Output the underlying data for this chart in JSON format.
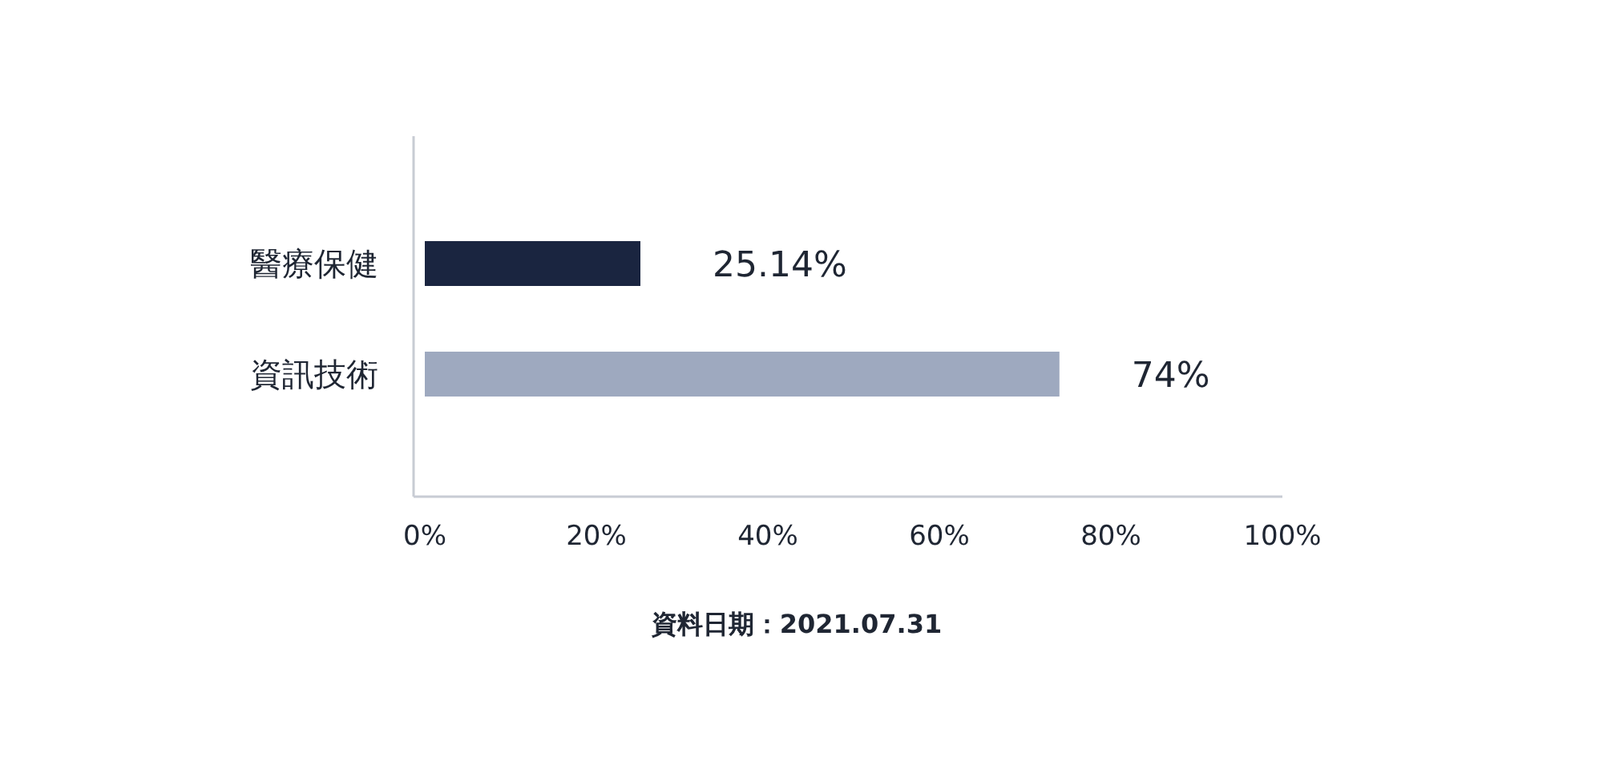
{
  "chart_data": {
    "type": "bar",
    "orientation": "horizontal",
    "categories": [
      "醫療保健",
      "資訊技術"
    ],
    "values": [
      25.14,
      74
    ],
    "colors": [
      "#1a2540",
      "#9ea9bf"
    ],
    "value_labels": [
      "25.14%",
      "74%"
    ],
    "xlim": [
      0,
      100
    ],
    "xticks": [
      {
        "value": 0,
        "label": "0%"
      },
      {
        "value": 20,
        "label": "20%"
      },
      {
        "value": 40,
        "label": "40%"
      },
      {
        "value": 60,
        "label": "60%"
      },
      {
        "value": 80,
        "label": "80%"
      },
      {
        "value": 100,
        "label": "100%"
      }
    ],
    "annotations": [
      "資料日期：2021.07.31"
    ]
  }
}
